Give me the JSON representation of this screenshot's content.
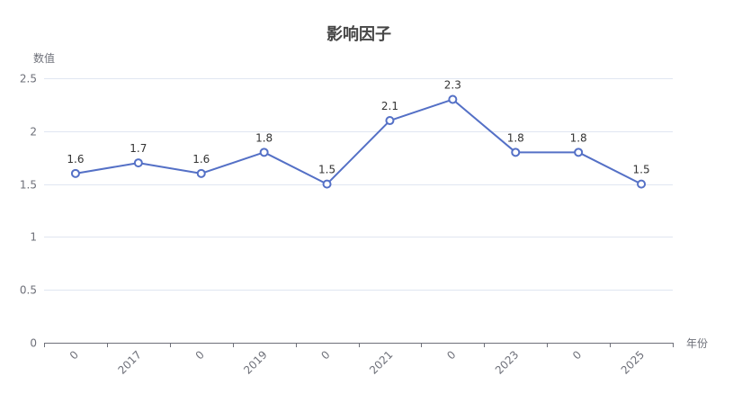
{
  "chart_data": {
    "type": "line",
    "title": "影响因子",
    "xlabel": "年份",
    "ylabel": "数值",
    "categories": [
      "0",
      "2017",
      "0",
      "2019",
      "0",
      "2021",
      "0",
      "2023",
      "0",
      "2025"
    ],
    "series": [
      {
        "name": "影响因子",
        "values": [
          1.6,
          1.7,
          1.6,
          1.8,
          1.5,
          2.1,
          2.3,
          1.8,
          1.8,
          1.5
        ],
        "color": "#5470c6"
      }
    ],
    "ylim": [
      0,
      2.5
    ],
    "yticks": [
      0,
      0.5,
      1,
      1.5,
      2,
      2.5
    ],
    "ytick_labels": [
      "0",
      "0.5",
      "1",
      "1.5",
      "2",
      "2.5"
    ],
    "grid": true,
    "data_labels": true,
    "legend": null
  },
  "colors": {
    "line": "#5470c6",
    "marker_fill": "#ffffff",
    "grid": "#e0e6f1",
    "axis": "#6e7079",
    "axis_label": "#6e7079",
    "title": "#464646",
    "data_label": "#333333"
  }
}
